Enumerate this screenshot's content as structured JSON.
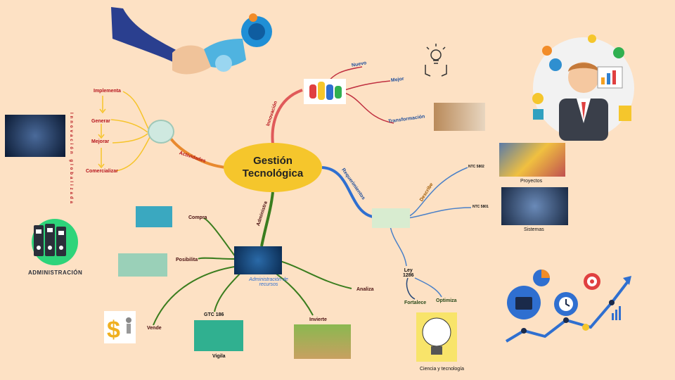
{
  "center": {
    "line1": "Gestión",
    "line2": "Tecnológica"
  },
  "branches": {
    "innovacion": "Innovación",
    "actividades": "Actividades",
    "requerimientos": "Requerimientos",
    "administra": "Administra"
  },
  "innovacion_children": {
    "nuevo": "Nuevo",
    "mejor": "Mejor",
    "transformacion": "Transformación"
  },
  "actividades_children": {
    "implementa": "Implementa",
    "generar": "Generar",
    "mejorar": "Mejorar",
    "comercializar": "Comercializar"
  },
  "vertical_word": "Innovación globalizada",
  "requerimientos_children": {
    "describe": "Describe",
    "ntc5802": "NTC 5802",
    "ntc5801": "NTC 5801",
    "proyectos": "Proyectos",
    "sistemas": "Sistemas",
    "ley_line1": "Ley",
    "ley_line2": "1286",
    "fortalece": "Fortalece",
    "optimiza": "Optimiza",
    "ciencia": "Ciencia y tecnología"
  },
  "administra_children": {
    "hub": "Administración de recursos",
    "compra": "Compra",
    "posibilita": "Posibilita",
    "vende": "Vende",
    "gtc": "GTC 186",
    "vigila": "Vigila",
    "invierte": "Invierte",
    "analiza": "Analiza"
  },
  "logo": {
    "text": "ADMINISTRACIÓN"
  },
  "colors": {
    "background": "#fde1c4",
    "center": "#f5c62c",
    "innovacion": "#e05a5a",
    "actividades": "#e8892e",
    "requerimientos": "#2f6fd0",
    "administra": "#3a7d1e",
    "sub_yellow": "#f6c42a"
  }
}
